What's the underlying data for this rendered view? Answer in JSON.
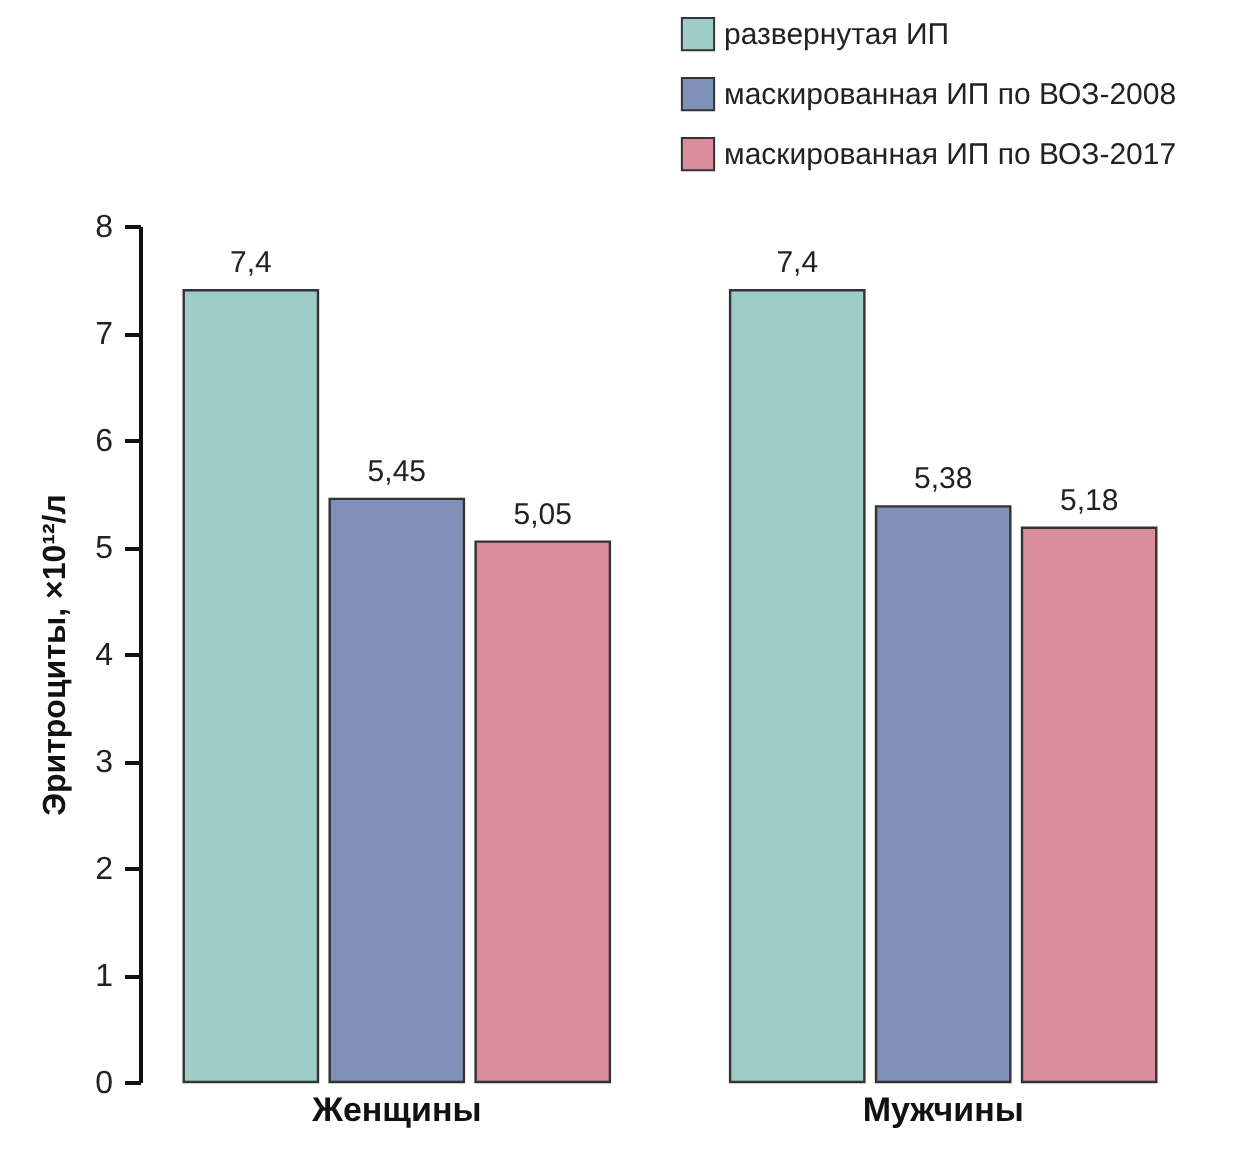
{
  "chart_data": {
    "type": "bar",
    "ylabel": "Эритроциты, ×10¹²/л",
    "categories": [
      "Женщины",
      "Мужчины"
    ],
    "series": [
      {
        "name": "развернутая ИП",
        "color": "#9dcdc6",
        "values": [
          7.4,
          7.4
        ],
        "value_labels": [
          "7,4",
          "7,4"
        ]
      },
      {
        "name": "маскированная ИП по ВОЗ-2008",
        "color": "#7f91b6",
        "values": [
          5.45,
          5.38
        ],
        "value_labels": [
          "5,45",
          "5,38"
        ]
      },
      {
        "name": "маскированная ИП по ВОЗ-2017",
        "color": "#d98d9d",
        "values": [
          5.05,
          5.18
        ],
        "value_labels": [
          "5,05",
          "5,18"
        ]
      }
    ],
    "ylim": [
      0,
      8
    ],
    "yticks": [
      0,
      1,
      2,
      3,
      4,
      5,
      6,
      7,
      8
    ],
    "grid": false,
    "legend": "top right"
  }
}
